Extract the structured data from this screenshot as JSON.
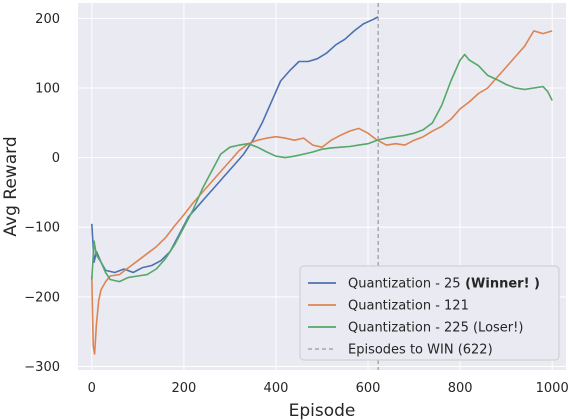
{
  "chart_data": {
    "type": "line",
    "title": "",
    "xlabel": "Episode",
    "ylabel": "Avg Reward",
    "xlim": [
      -30,
      1030
    ],
    "ylim": [
      -305,
      222
    ],
    "xticks": [
      0,
      200,
      400,
      600,
      800,
      1000
    ],
    "yticks": [
      -300,
      -200,
      -100,
      0,
      100,
      200
    ],
    "grid": true,
    "legend_position": "lower-right",
    "background": "#eaeaf2",
    "series": [
      {
        "name": "Quantization - 25",
        "name_suffix": "(Winner! )",
        "color": "#4c72b0",
        "points": [
          [
            0,
            -95
          ],
          [
            5,
            -150
          ],
          [
            10,
            -135
          ],
          [
            20,
            -150
          ],
          [
            30,
            -162
          ],
          [
            50,
            -165
          ],
          [
            70,
            -160
          ],
          [
            90,
            -165
          ],
          [
            110,
            -158
          ],
          [
            130,
            -155
          ],
          [
            150,
            -148
          ],
          [
            170,
            -135
          ],
          [
            190,
            -110
          ],
          [
            210,
            -85
          ],
          [
            230,
            -70
          ],
          [
            250,
            -55
          ],
          [
            270,
            -40
          ],
          [
            290,
            -25
          ],
          [
            310,
            -10
          ],
          [
            330,
            5
          ],
          [
            350,
            25
          ],
          [
            370,
            50
          ],
          [
            390,
            80
          ],
          [
            410,
            110
          ],
          [
            430,
            125
          ],
          [
            450,
            138
          ],
          [
            470,
            138
          ],
          [
            490,
            142
          ],
          [
            510,
            150
          ],
          [
            530,
            162
          ],
          [
            550,
            170
          ],
          [
            570,
            182
          ],
          [
            590,
            192
          ],
          [
            610,
            198
          ],
          [
            622,
            202
          ]
        ]
      },
      {
        "name": "Quantization - 121",
        "color": "#dd8452",
        "points": [
          [
            0,
            -170
          ],
          [
            3,
            -270
          ],
          [
            6,
            -282
          ],
          [
            10,
            -240
          ],
          [
            15,
            -205
          ],
          [
            20,
            -190
          ],
          [
            30,
            -178
          ],
          [
            40,
            -170
          ],
          [
            60,
            -168
          ],
          [
            80,
            -158
          ],
          [
            100,
            -148
          ],
          [
            120,
            -138
          ],
          [
            140,
            -128
          ],
          [
            160,
            -115
          ],
          [
            180,
            -98
          ],
          [
            200,
            -82
          ],
          [
            220,
            -65
          ],
          [
            240,
            -50
          ],
          [
            260,
            -35
          ],
          [
            280,
            -20
          ],
          [
            300,
            -5
          ],
          [
            320,
            10
          ],
          [
            340,
            20
          ],
          [
            360,
            25
          ],
          [
            380,
            28
          ],
          [
            400,
            30
          ],
          [
            420,
            28
          ],
          [
            440,
            25
          ],
          [
            460,
            28
          ],
          [
            480,
            18
          ],
          [
            500,
            15
          ],
          [
            520,
            25
          ],
          [
            540,
            32
          ],
          [
            560,
            38
          ],
          [
            580,
            42
          ],
          [
            600,
            35
          ],
          [
            620,
            25
          ],
          [
            640,
            18
          ],
          [
            660,
            20
          ],
          [
            680,
            18
          ],
          [
            700,
            25
          ],
          [
            720,
            30
          ],
          [
            740,
            38
          ],
          [
            760,
            45
          ],
          [
            780,
            55
          ],
          [
            800,
            70
          ],
          [
            820,
            80
          ],
          [
            840,
            92
          ],
          [
            860,
            100
          ],
          [
            880,
            115
          ],
          [
            900,
            130
          ],
          [
            920,
            145
          ],
          [
            940,
            160
          ],
          [
            960,
            182
          ],
          [
            980,
            178
          ],
          [
            1000,
            182
          ]
        ]
      },
      {
        "name": "Quantization - 225 (Loser!)",
        "color": "#55a868",
        "points": [
          [
            0,
            -175
          ],
          [
            5,
            -120
          ],
          [
            10,
            -140
          ],
          [
            20,
            -150
          ],
          [
            30,
            -165
          ],
          [
            40,
            -175
          ],
          [
            60,
            -178
          ],
          [
            80,
            -172
          ],
          [
            100,
            -170
          ],
          [
            120,
            -168
          ],
          [
            140,
            -160
          ],
          [
            160,
            -145
          ],
          [
            180,
            -125
          ],
          [
            200,
            -100
          ],
          [
            220,
            -75
          ],
          [
            240,
            -45
          ],
          [
            260,
            -20
          ],
          [
            280,
            5
          ],
          [
            300,
            15
          ],
          [
            320,
            18
          ],
          [
            340,
            20
          ],
          [
            360,
            15
          ],
          [
            380,
            8
          ],
          [
            400,
            2
          ],
          [
            420,
            0
          ],
          [
            440,
            2
          ],
          [
            460,
            5
          ],
          [
            480,
            8
          ],
          [
            500,
            12
          ],
          [
            520,
            14
          ],
          [
            540,
            15
          ],
          [
            560,
            16
          ],
          [
            580,
            18
          ],
          [
            600,
            20
          ],
          [
            620,
            25
          ],
          [
            640,
            28
          ],
          [
            660,
            30
          ],
          [
            680,
            32
          ],
          [
            700,
            35
          ],
          [
            720,
            40
          ],
          [
            740,
            50
          ],
          [
            760,
            75
          ],
          [
            780,
            110
          ],
          [
            800,
            140
          ],
          [
            810,
            148
          ],
          [
            820,
            140
          ],
          [
            840,
            132
          ],
          [
            860,
            118
          ],
          [
            880,
            112
          ],
          [
            900,
            105
          ],
          [
            920,
            100
          ],
          [
            940,
            98
          ],
          [
            960,
            100
          ],
          [
            980,
            102
          ],
          [
            990,
            95
          ],
          [
            1000,
            82
          ]
        ]
      }
    ],
    "vlines": [
      {
        "name": "Episodes to WIN (622)",
        "x": 622,
        "color": "#999999",
        "style": "dashed"
      }
    ]
  }
}
